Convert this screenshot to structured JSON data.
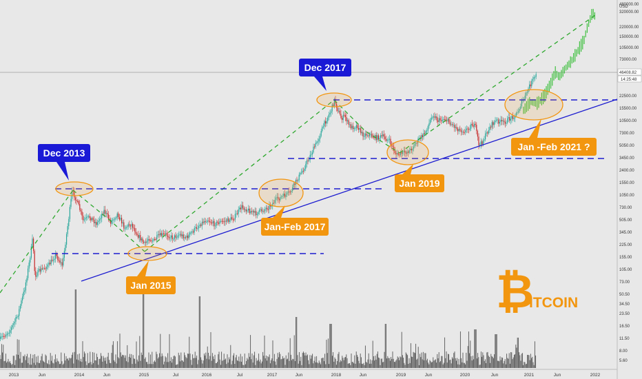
{
  "chart_data": {
    "type": "line",
    "title": "",
    "scale": "log",
    "currency": "USD",
    "current_price": "46408.82",
    "countdown": "14:25:48",
    "y_ticks": [
      "480000.00",
      "320000.00",
      "220000.00",
      "150000.00",
      "105000.00",
      "73000.00",
      "22500.00",
      "15500.00",
      "10500.00",
      "7300.00",
      "5050.00",
      "3450.00",
      "2400.00",
      "1550.00",
      "1050.00",
      "730.00",
      "505.00",
      "345.00",
      "225.00",
      "155.00",
      "105.00",
      "73.00",
      "50.50",
      "34.50",
      "23.50",
      "16.50",
      "11.50",
      "8.00",
      "5.60"
    ],
    "x_ticks": [
      "2013",
      "Jun",
      "2014",
      "Jun",
      "2015",
      "Jul",
      "2016",
      "Jul",
      "2017",
      "Jun",
      "2018",
      "Jun",
      "2019",
      "Jun",
      "2020",
      "Jun",
      "2021",
      "Jun",
      "2022"
    ],
    "callouts": [
      {
        "label": "Dec 2013",
        "color": "#1a1ad6"
      },
      {
        "label": "Dec 2017",
        "color": "#1a1ad6"
      },
      {
        "label": "Jan 2015",
        "color": "#f2950f"
      },
      {
        "label": "Jan-Feb 2017",
        "color": "#f2950f"
      },
      {
        "label": "Jan 2019",
        "color": "#f2950f"
      },
      {
        "label": "Jan -Feb 2021 ?",
        "color": "#f2950f"
      }
    ],
    "logo_text": "ITCOIN",
    "logo_glyph": "₿",
    "logo_color": "#f2950f",
    "up_color": "#26a69a",
    "down_color": "#c62828",
    "projection_color": "#3fbf3f",
    "support_color": "#1c1cd0",
    "trend_color": "#2ea82e"
  }
}
